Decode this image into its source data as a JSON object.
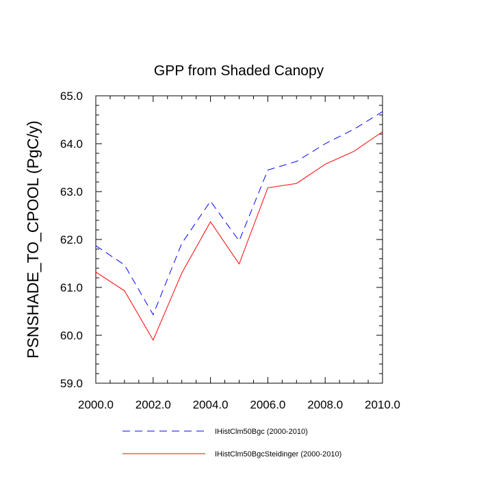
{
  "chart_data": {
    "type": "line",
    "title": "GPP from Shaded Canopy",
    "xlabel": "",
    "ylabel": "PSNSHADE_TO_CPOOL  (PgC/y)",
    "xlim": [
      2000,
      2010
    ],
    "ylim": [
      59,
      65
    ],
    "x": [
      2000,
      2001,
      2002,
      2003,
      2004,
      2005,
      2006,
      2007,
      2008,
      2009,
      2010
    ],
    "xticks": [
      2000,
      2002,
      2004,
      2006,
      2008,
      2010
    ],
    "xtick_labels": [
      "2000.0",
      "2002.0",
      "2004.0",
      "2006.0",
      "2008.0",
      "2010.0"
    ],
    "yticks": [
      59,
      60,
      61,
      62,
      63,
      64,
      65
    ],
    "ytick_labels": [
      "59.0",
      "60.0",
      "61.0",
      "62.0",
      "63.0",
      "64.0",
      "65.0"
    ],
    "grid": false,
    "legend_position": "bottom",
    "series": [
      {
        "name": "IHistClm50Bgc (2000-2010)",
        "color": "#0000ff",
        "style": "dashed",
        "values": [
          61.87,
          61.47,
          60.43,
          61.92,
          62.8,
          61.97,
          63.45,
          63.63,
          64.0,
          64.3,
          64.67
        ]
      },
      {
        "name": "IHistClm50BgcSteidinger (2000-2010)",
        "color": "#ff0000",
        "style": "solid",
        "values": [
          61.32,
          60.93,
          59.9,
          61.3,
          62.37,
          61.49,
          63.08,
          63.17,
          63.57,
          63.84,
          64.25
        ]
      }
    ]
  }
}
